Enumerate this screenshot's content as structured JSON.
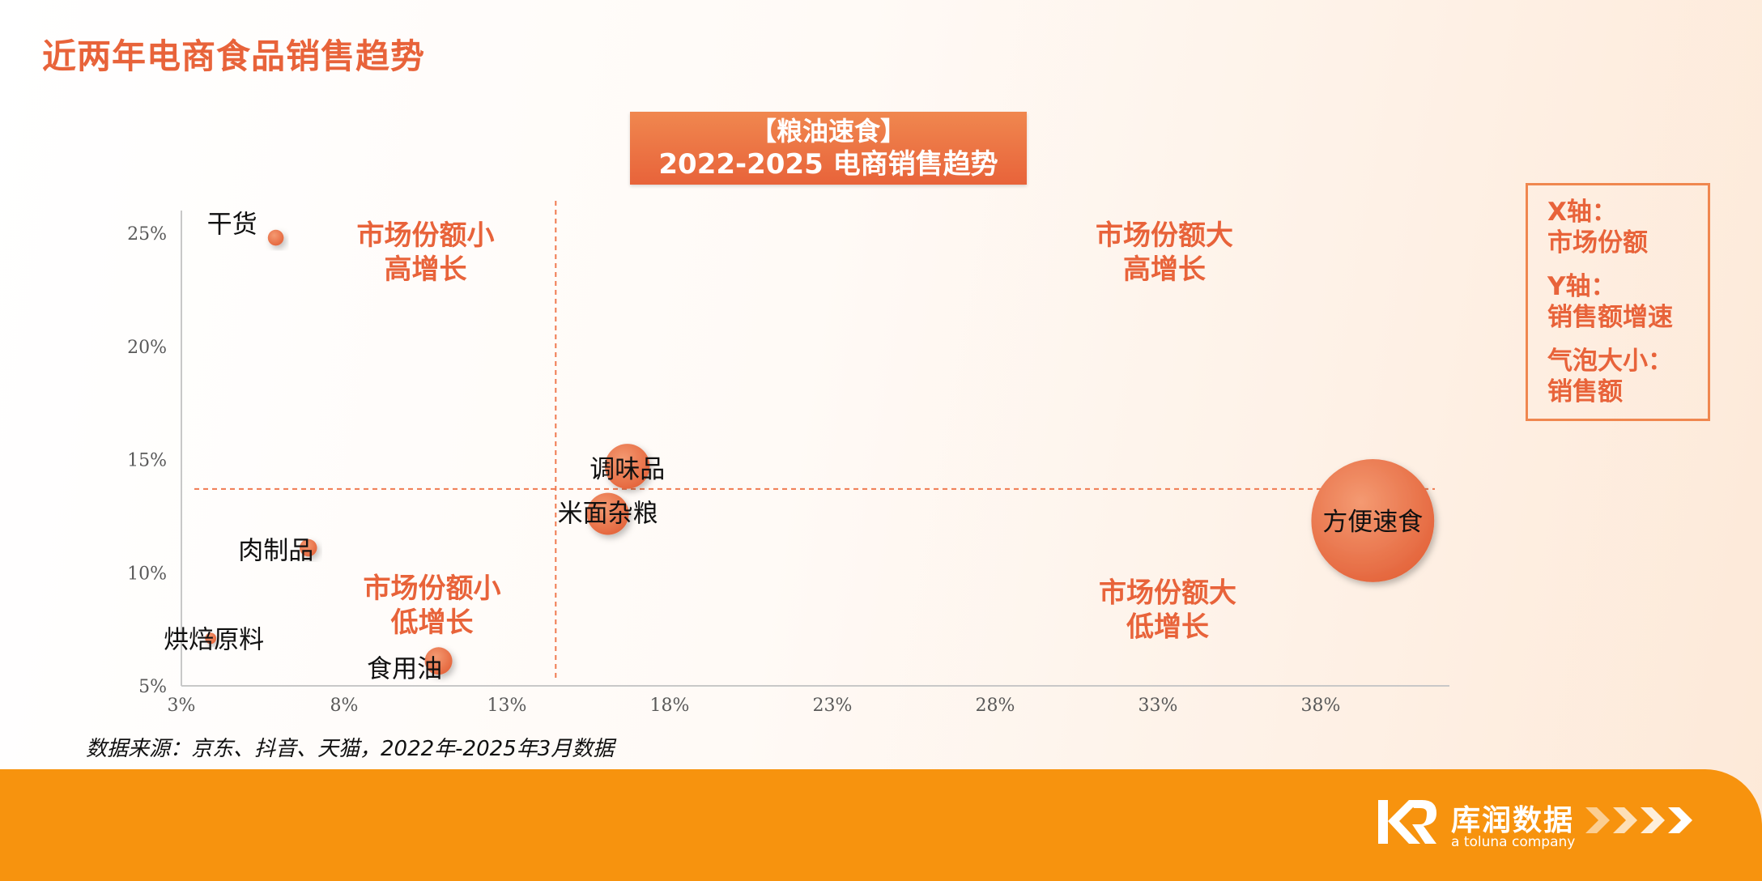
{
  "page_title": "近两年电商食品销售趋势",
  "chart_header": {
    "line1": "【粮油速食】",
    "line2": "2022-2025 电商销售趋势"
  },
  "legend": {
    "x_axis": [
      "X轴：",
      "市场份额"
    ],
    "y_axis": [
      "Y轴：",
      "销售额增速"
    ],
    "bubble": [
      "气泡大小：",
      "销售额"
    ]
  },
  "source": "数据来源：京东、抖音、天猫，2022年-2025年3月数据",
  "brand": {
    "name": "库润数据",
    "tagline": "a toluna company"
  },
  "colors": {
    "accent": "#E8633A",
    "bubble": "#EC7A50",
    "footer": "#F7930E"
  },
  "chart_data": {
    "type": "scatter",
    "subtype": "bubble",
    "xlim": [
      3,
      42
    ],
    "ylim": [
      5,
      26
    ],
    "x_ticks": [
      3,
      8,
      13,
      18,
      23,
      28,
      33,
      38
    ],
    "x_tick_labels": [
      "3%",
      "8%",
      "13%",
      "18%",
      "23%",
      "28%",
      "33%",
      "38%"
    ],
    "y_ticks": [
      5,
      10,
      15,
      20,
      25
    ],
    "y_tick_labels": [
      "5%",
      "10%",
      "15%",
      "20%",
      "25%"
    ],
    "quadrant_divider": {
      "x": 14.5,
      "y": 13.7
    },
    "quadrant_labels": [
      {
        "text": [
          "市场份额小",
          "高增长"
        ],
        "x": 10.5,
        "y": 24.5
      },
      {
        "text": [
          "市场份额大",
          "高增长"
        ],
        "x": 33.2,
        "y": 24.5
      },
      {
        "text": [
          "市场份额小",
          "低增长"
        ],
        "x": 10.7,
        "y": 8.9
      },
      {
        "text": [
          "市场份额大",
          "低增长"
        ],
        "x": 33.3,
        "y": 8.7
      }
    ],
    "points": [
      {
        "name": "干货",
        "x": 5.9,
        "y": 24.8,
        "size": 1
      },
      {
        "name": "调味品",
        "x": 16.7,
        "y": 14.7,
        "size": 8
      },
      {
        "name": "米面杂粮",
        "x": 16.1,
        "y": 12.6,
        "size": 7
      },
      {
        "name": "方便速食",
        "x": 39.6,
        "y": 12.3,
        "size": 60
      },
      {
        "name": "肉制品",
        "x": 6.9,
        "y": 11.1,
        "size": 1.2
      },
      {
        "name": "烘焙原料",
        "x": 3.9,
        "y": 7.1,
        "size": 0.5
      },
      {
        "name": "食用油",
        "x": 10.9,
        "y": 6.1,
        "size": 3
      }
    ]
  }
}
